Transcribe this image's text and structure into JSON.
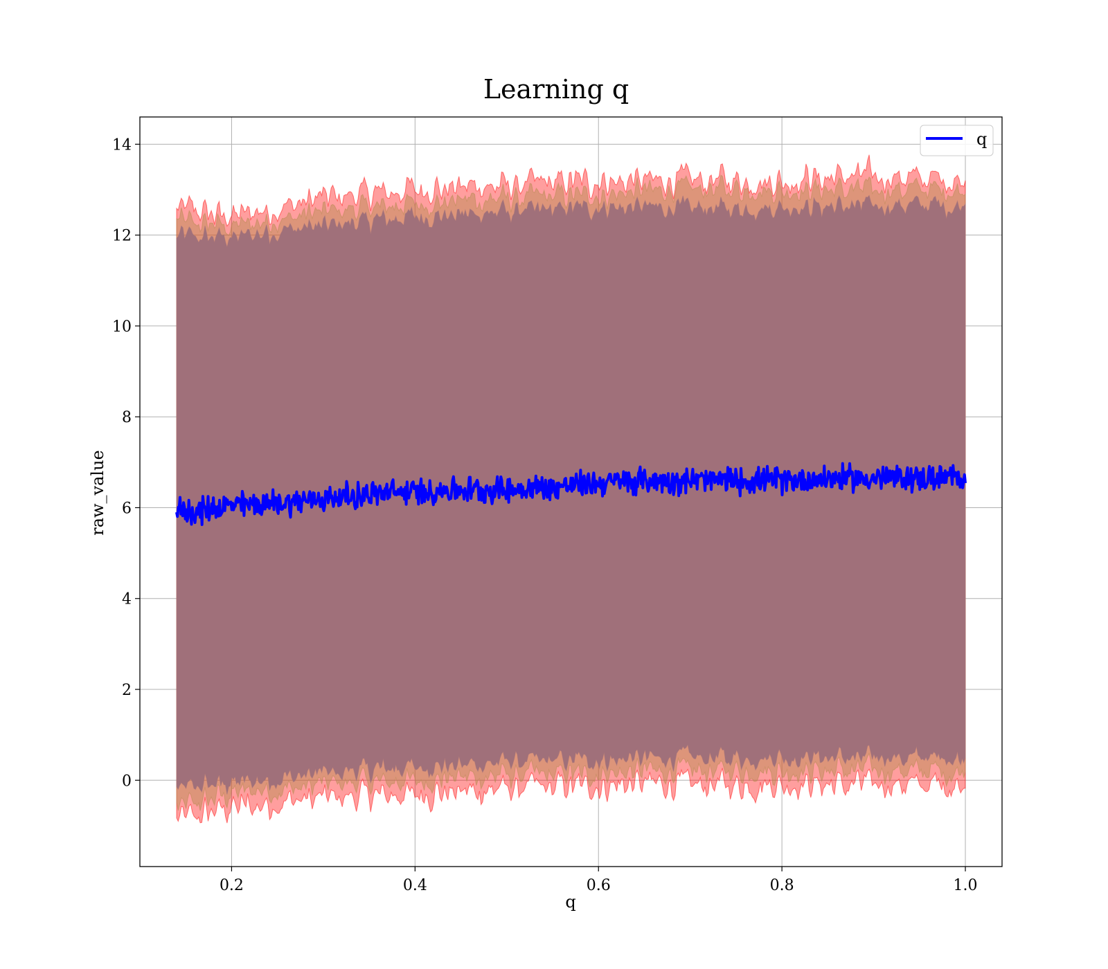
{
  "chart_data": {
    "type": "line",
    "title": "Learning q",
    "xlabel": "q",
    "ylabel": "raw_value",
    "xlim": [
      0.1,
      1.04
    ],
    "ylim": [
      -1.9,
      14.6
    ],
    "xticks": [
      0.2,
      0.4,
      0.6,
      0.8,
      1.0
    ],
    "xtick_labels": [
      "0.2",
      "0.4",
      "0.6",
      "0.8",
      "1.0"
    ],
    "yticks": [
      0,
      2,
      4,
      6,
      8,
      10,
      12,
      14
    ],
    "ytick_labels": [
      "0",
      "2",
      "4",
      "6",
      "8",
      "10",
      "12",
      "14"
    ],
    "grid": true,
    "legend": {
      "location": "top-right",
      "entries": [
        {
          "label": "q",
          "color": "#0000ff"
        }
      ]
    },
    "x_range": [
      0.14,
      1.0
    ],
    "series": [
      {
        "name": "q",
        "color": "#0000ff",
        "x": [
          0.14,
          0.16,
          0.18,
          0.2,
          0.25,
          0.3,
          0.35,
          0.4,
          0.45,
          0.5,
          0.55,
          0.6,
          0.65,
          0.7,
          0.75,
          0.8,
          0.85,
          0.9,
          0.95,
          1.0
        ],
        "y": [
          5.95,
          5.9,
          6.0,
          6.05,
          6.1,
          6.2,
          6.3,
          6.35,
          6.4,
          6.4,
          6.45,
          6.55,
          6.6,
          6.6,
          6.6,
          6.6,
          6.65,
          6.65,
          6.65,
          6.65
        ],
        "noise_amplitude": 0.35
      }
    ],
    "bands": [
      {
        "description": "outer band",
        "color": "#ff0000",
        "x": [
          0.14,
          0.2,
          0.3,
          0.4,
          0.5,
          0.6,
          0.7,
          0.8,
          0.9,
          1.0
        ],
        "upper": [
          12.6,
          12.4,
          12.8,
          13.0,
          13.1,
          13.2,
          13.2,
          13.2,
          13.3,
          13.2
        ],
        "lower": [
          -0.9,
          -0.6,
          -0.4,
          -0.3,
          -0.2,
          -0.1,
          -0.1,
          -0.1,
          -0.1,
          -0.1
        ]
      },
      {
        "description": "middle band",
        "color": "#b38a4d",
        "x": [
          0.14,
          0.2,
          0.3,
          0.4,
          0.5,
          0.6,
          0.7,
          0.8,
          0.9,
          1.0
        ],
        "upper": [
          12.3,
          12.2,
          12.5,
          12.7,
          12.8,
          12.9,
          13.0,
          13.0,
          13.0,
          13.0
        ],
        "lower": [
          -0.6,
          -0.3,
          -0.1,
          0.0,
          0.1,
          0.15,
          0.2,
          0.2,
          0.2,
          0.2
        ]
      },
      {
        "description": "inner band",
        "color": "#a0707a",
        "x": [
          0.14,
          0.2,
          0.3,
          0.4,
          0.5,
          0.6,
          0.7,
          0.8,
          0.9,
          1.0
        ],
        "upper": [
          11.95,
          11.95,
          12.2,
          12.4,
          12.5,
          12.6,
          12.6,
          12.6,
          12.65,
          12.65
        ],
        "lower": [
          -0.2,
          -0.05,
          0.15,
          0.3,
          0.4,
          0.45,
          0.5,
          0.5,
          0.5,
          0.5
        ]
      }
    ]
  }
}
